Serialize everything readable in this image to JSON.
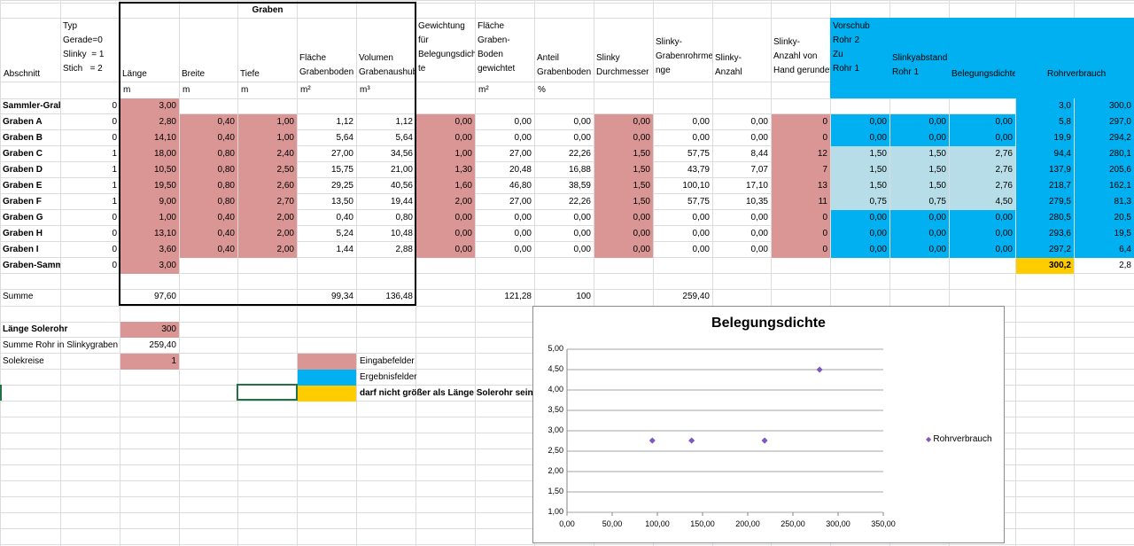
{
  "headers": {
    "graben_group": "Graben",
    "abschnitt": "Abschnitt",
    "typ": "Typ\nGerade=0\nSlinky  = 1\nStich   = 2",
    "laenge": "Länge",
    "breite": "Breite",
    "tiefe": "Tiefe",
    "flaeche": "Fläche\nGrabenboden",
    "volumen": "Volumen\nGrabenaushub",
    "gewichtung": "Gewichtung\nfür\nBelegungsdich\nte",
    "flaeche_gew": "Fläche\nGraben-\nBoden\ngewichtet",
    "anteil": "Anteil\nGrabenboden",
    "slinky_d": "Slinky\nDurchmesser",
    "slinky_rohr": "Slinky-\nGrabenrohrme\nnge",
    "slinky_anzahl": "Slinky-\nAnzahl",
    "slinky_hand": "Slinky-\nAnzahl von\nHand gerundet",
    "vorschub": "Vorschub\nRohr 2\nZu\nRohr 1",
    "slinkyabstand": "Slinkyabstand\nRohr 1",
    "belegungsdichte": "Belegungsdichte",
    "rohrverbrauch": "Rohrverbrauch"
  },
  "units": {
    "laenge": "m",
    "breite": "m",
    "tiefe": "m",
    "flaeche": "m²",
    "volumen": "m³",
    "flaeche_gew": "m²",
    "anteil": "%"
  },
  "rows": [
    {
      "name": "Sammler-Grab",
      "typ": "0",
      "laenge": "3,00",
      "breite": "",
      "tiefe": "",
      "flaeche": "",
      "volumen": "",
      "gew": "",
      "fgew": "",
      "anteil": "",
      "sd": "",
      "sr": "",
      "sa": "",
      "sh": "",
      "v": "",
      "sab": "",
      "bd": "",
      "rv": "3,0",
      "rv2": "300,0",
      "style": "top"
    },
    {
      "name": "Graben A",
      "typ": "0",
      "laenge": "2,80",
      "breite": "0,40",
      "tiefe": "1,00",
      "flaeche": "1,12",
      "volumen": "1,12",
      "gew": "0,00",
      "fgew": "0,00",
      "anteil": "0,00",
      "sd": "0,00",
      "sr": "0,00",
      "sa": "0,00",
      "sh": "0",
      "v": "0,00",
      "sab": "0,00",
      "bd": "0,00",
      "rv": "5,8",
      "rv2": "297,0",
      "style": "blue"
    },
    {
      "name": "Graben B",
      "typ": "0",
      "laenge": "14,10",
      "breite": "0,40",
      "tiefe": "1,00",
      "flaeche": "5,64",
      "volumen": "5,64",
      "gew": "0,00",
      "fgew": "0,00",
      "anteil": "0,00",
      "sd": "0,00",
      "sr": "0,00",
      "sa": "0,00",
      "sh": "0",
      "v": "0,00",
      "sab": "0,00",
      "bd": "0,00",
      "rv": "19,9",
      "rv2": "294,2",
      "style": "blue"
    },
    {
      "name": "Graben C",
      "typ": "1",
      "laenge": "18,00",
      "breite": "0,80",
      "tiefe": "2,40",
      "flaeche": "27,00",
      "volumen": "34,56",
      "gew": "1,00",
      "fgew": "27,00",
      "anteil": "22,26",
      "sd": "1,50",
      "sr": "57,75",
      "sa": "8,44",
      "sh": "12",
      "v": "1,50",
      "sab": "1,50",
      "bd": "2,76",
      "rv": "94,4",
      "rv2": "280,1",
      "style": "lblue"
    },
    {
      "name": "Graben D",
      "typ": "1",
      "laenge": "10,50",
      "breite": "0,80",
      "tiefe": "2,50",
      "flaeche": "15,75",
      "volumen": "21,00",
      "gew": "1,30",
      "fgew": "20,48",
      "anteil": "16,88",
      "sd": "1,50",
      "sr": "43,79",
      "sa": "7,07",
      "sh": "7",
      "v": "1,50",
      "sab": "1,50",
      "bd": "2,76",
      "rv": "137,9",
      "rv2": "205,6",
      "style": "lblue"
    },
    {
      "name": "Graben E",
      "typ": "1",
      "laenge": "19,50",
      "breite": "0,80",
      "tiefe": "2,60",
      "flaeche": "29,25",
      "volumen": "40,56",
      "gew": "1,60",
      "fgew": "46,80",
      "anteil": "38,59",
      "sd": "1,50",
      "sr": "100,10",
      "sa": "17,10",
      "sh": "13",
      "v": "1,50",
      "sab": "1,50",
      "bd": "2,76",
      "rv": "218,7",
      "rv2": "162,1",
      "style": "lblue"
    },
    {
      "name": "Graben F",
      "typ": "1",
      "laenge": "9,00",
      "breite": "0,80",
      "tiefe": "2,70",
      "flaeche": "13,50",
      "volumen": "19,44",
      "gew": "2,00",
      "fgew": "27,00",
      "anteil": "22,26",
      "sd": "1,50",
      "sr": "57,75",
      "sa": "10,35",
      "sh": "11",
      "v": "0,75",
      "sab": "0,75",
      "bd": "4,50",
      "rv": "279,5",
      "rv2": "81,3",
      "style": "lblue"
    },
    {
      "name": "Graben G",
      "typ": "0",
      "laenge": "1,00",
      "breite": "0,40",
      "tiefe": "2,00",
      "flaeche": "0,40",
      "volumen": "0,80",
      "gew": "0,00",
      "fgew": "0,00",
      "anteil": "0,00",
      "sd": "0,00",
      "sr": "0,00",
      "sa": "0,00",
      "sh": "0",
      "v": "0,00",
      "sab": "0,00",
      "bd": "0,00",
      "rv": "280,5",
      "rv2": "20,5",
      "style": "blue"
    },
    {
      "name": "Graben H",
      "typ": "0",
      "laenge": "13,10",
      "breite": "0,40",
      "tiefe": "2,00",
      "flaeche": "5,24",
      "volumen": "10,48",
      "gew": "0,00",
      "fgew": "0,00",
      "anteil": "0,00",
      "sd": "0,00",
      "sr": "0,00",
      "sa": "0,00",
      "sh": "0",
      "v": "0,00",
      "sab": "0,00",
      "bd": "0,00",
      "rv": "293,6",
      "rv2": "19,5",
      "style": "blue"
    },
    {
      "name": "Graben I",
      "typ": "0",
      "laenge": "3,60",
      "breite": "0,40",
      "tiefe": "2,00",
      "flaeche": "1,44",
      "volumen": "2,88",
      "gew": "0,00",
      "fgew": "0,00",
      "anteil": "0,00",
      "sd": "0,00",
      "sr": "0,00",
      "sa": "0,00",
      "sh": "0",
      "v": "0,00",
      "sab": "0,00",
      "bd": "0,00",
      "rv": "297,2",
      "rv2": "6,4",
      "style": "blue"
    },
    {
      "name": "Graben-Samm",
      "typ": "0",
      "laenge": "3,00",
      "breite": "",
      "tiefe": "",
      "flaeche": "",
      "volumen": "",
      "gew": "",
      "fgew": "",
      "anteil": "",
      "sd": "",
      "sr": "",
      "sa": "",
      "sh": "",
      "v": "",
      "sab": "",
      "bd": "",
      "rv": "300,2",
      "rv2": "2,8",
      "style": "last"
    }
  ],
  "summe": {
    "label": "Summe",
    "laenge": "97,60",
    "flaeche": "99,34",
    "volumen": "136,48",
    "fgew": "121,28",
    "anteil": "100",
    "sr": "259,40"
  },
  "inputs": {
    "laenge_solerohr_label": "Länge Solerohr",
    "laenge_solerohr": "300",
    "summe_rohr_label": "Summe Rohr in Slinkygraben",
    "summe_rohr": "259,40",
    "solekreise_label": "Solekreise",
    "solekreise": "1"
  },
  "legend_boxes": {
    "eingabe": "Eingabefelder",
    "ergebnis": "Ergebnisfelder",
    "warnung": "darf nicht größer als Länge Solerohr sein"
  },
  "colors": {
    "input": "#da9694",
    "result": "#00b0f0",
    "result_light": "#b7dee8",
    "warning": "#ffcc00",
    "marker": "#7e57c2"
  },
  "chart_data": {
    "type": "scatter",
    "title": "Belegungsdichte",
    "series": [
      {
        "name": "Rohrverbrauch",
        "x": [
          94.4,
          137.9,
          218.7,
          279.5
        ],
        "y": [
          2.76,
          2.76,
          2.76,
          4.5
        ]
      }
    ],
    "xlim": [
      0,
      350
    ],
    "ylim": [
      1,
      5
    ],
    "x_ticks": [
      "0,00",
      "50,00",
      "100,00",
      "150,00",
      "200,00",
      "250,00",
      "300,00",
      "350,00"
    ],
    "y_ticks": [
      "1,00",
      "1,50",
      "2,00",
      "2,50",
      "3,00",
      "3,50",
      "4,00",
      "4,50",
      "5,00"
    ],
    "grid": true,
    "legend_position": "right"
  }
}
